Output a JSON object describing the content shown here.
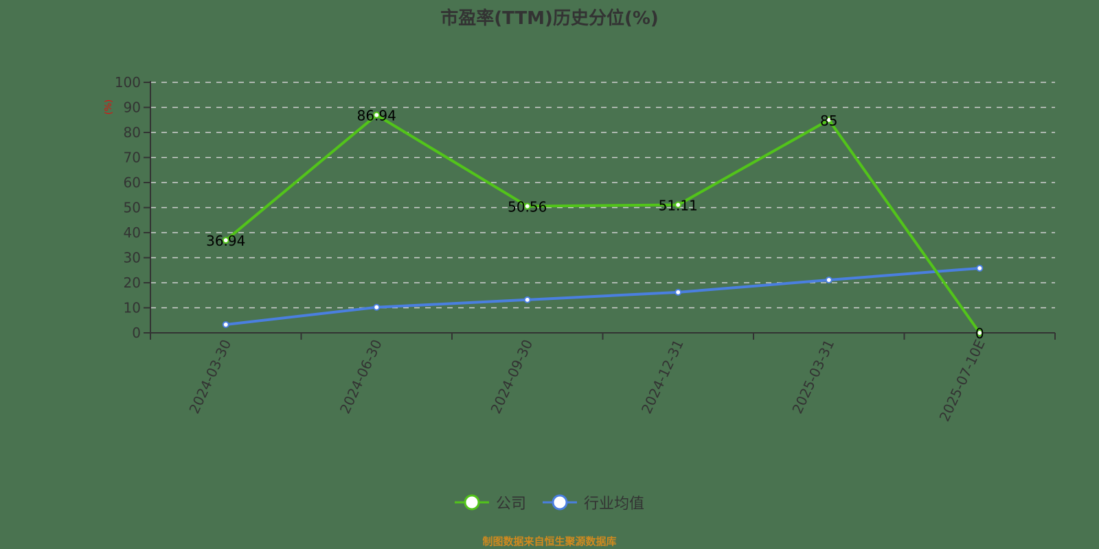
{
  "title": "市盈率(TTM)历史分位(%)",
  "y_axis": {
    "unit_label": "(%)",
    "ticks": [
      "0",
      "10",
      "20",
      "30",
      "40",
      "50",
      "60",
      "70",
      "80",
      "90",
      "100"
    ]
  },
  "legend": [
    {
      "label": "公司",
      "color": "#52c41a"
    },
    {
      "label": "行业均值",
      "color": "#4a7fe0"
    }
  ],
  "source": "制图数据来自恒生聚源数据库",
  "chart_data": {
    "type": "line",
    "title": "市盈率(TTM)历史分位(%)",
    "xlabel": "",
    "ylabel": "(%)",
    "ylim": [
      0,
      100
    ],
    "grid": true,
    "legend_position": "bottom",
    "categories": [
      "2024-03-30",
      "2024-06-30",
      "2024-09-30",
      "2024-12-31",
      "2025-03-31",
      "2025-07-10E"
    ],
    "series": [
      {
        "name": "公司",
        "color": "#52c41a",
        "values": [
          36.94,
          86.94,
          50.56,
          51.11,
          85,
          0
        ],
        "labels": [
          "36.94",
          "86.94",
          "50.56",
          "51.11",
          "85",
          "0"
        ]
      },
      {
        "name": "行业均值",
        "color": "#4a7fe0",
        "values": [
          3.3,
          10.2,
          13.2,
          16.2,
          21.1,
          25.8
        ]
      }
    ]
  }
}
